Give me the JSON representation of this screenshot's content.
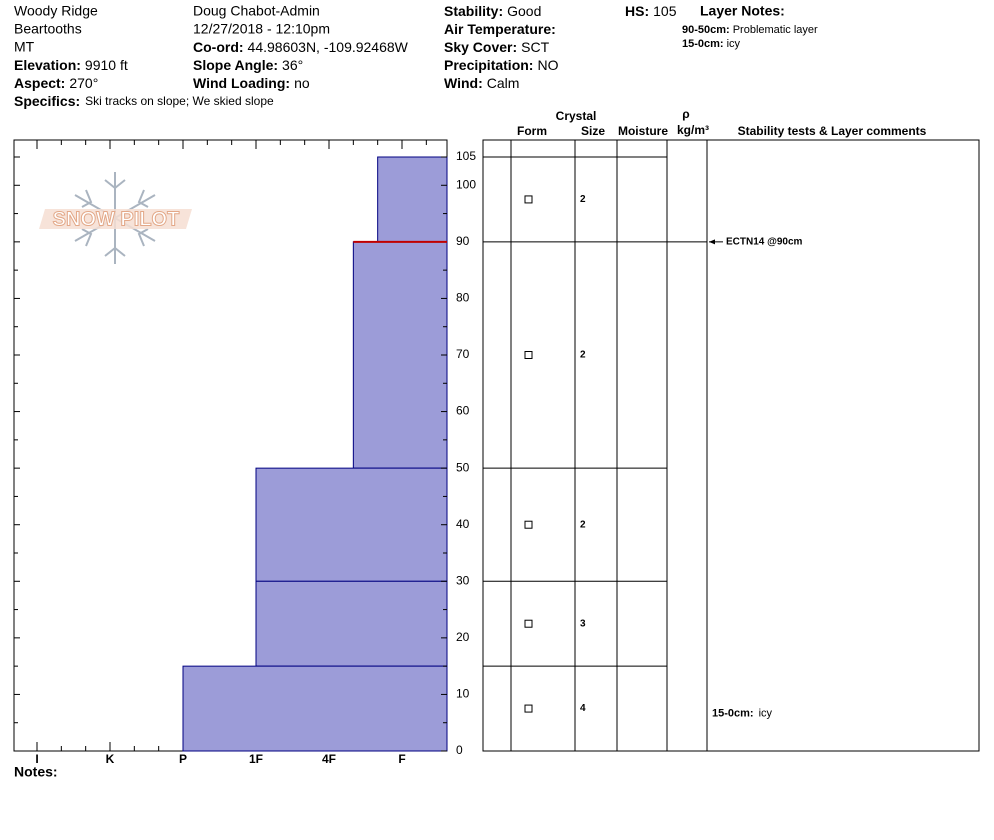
{
  "header": {
    "site": "Woody Ridge",
    "range": "Beartooths",
    "state": "MT",
    "observer": "Doug Chabot-Admin",
    "datetime": "12/27/2018 - 12:10pm",
    "fields": [
      {
        "label": "Elevation:",
        "value": "9910 ft"
      },
      {
        "label": "Aspect:",
        "value": "270°"
      },
      {
        "label": "Co-ord:",
        "value": "44.98603N, -109.92468W"
      },
      {
        "label": "Slope Angle:",
        "value": "36°"
      },
      {
        "label": "Wind Loading:",
        "value": "no"
      },
      {
        "label": "Stability:",
        "value": "Good"
      },
      {
        "label": "Air Temperature:"
      },
      {
        "label": "Sky Cover:",
        "value": "SCT"
      },
      {
        "label": "Precipitation:",
        "value": "NO"
      },
      {
        "label": "Wind:",
        "value": "Calm"
      },
      {
        "label": "HS:",
        "value": 105
      }
    ],
    "specifics": {
      "label": "Specifics:",
      "value": "Ski tracks on slope; We skied slope"
    },
    "layer_notes": {
      "title": "Layer Notes:",
      "items": [
        {
          "range": "90-50cm:",
          "text": "Problematic layer"
        },
        {
          "range": "15-0cm:",
          "text": "icy"
        }
      ]
    }
  },
  "chart_data": {
    "type": "snow-profile",
    "logo": "SNOW PILOT",
    "hardness_ticks": [
      "I",
      "K",
      "P",
      "1F",
      "4F",
      "F"
    ],
    "ylim": [
      0,
      105
    ],
    "yticks": [
      0,
      10,
      20,
      30,
      40,
      50,
      60,
      70,
      80,
      90,
      100,
      105
    ],
    "color": "#9c9cd8",
    "columns": {
      "crystal": "Crystal",
      "form": "Form",
      "size": "Size",
      "moisture": "Moisture",
      "density": "ρ",
      "density_unit": "kg/m³",
      "comments": "Stability tests & Layer comments"
    },
    "layers": [
      {
        "top": 105,
        "bottom": 90,
        "hardness": "F-",
        "size": 2
      },
      {
        "top": 90,
        "bottom": 50,
        "hardness": "4F+",
        "size": 2
      },
      {
        "top": 50,
        "bottom": 30,
        "hardness": "1F",
        "size": 2
      },
      {
        "top": 30,
        "bottom": 15,
        "hardness": "1F",
        "size": 3
      },
      {
        "top": 15,
        "bottom": 0,
        "hardness": "P",
        "size": 4
      }
    ],
    "tests": [
      {
        "depth": 90,
        "label": "ECTN14 @90cm"
      }
    ],
    "comments": [
      {
        "range": "15-0cm:",
        "text": "icy",
        "top": 15,
        "bottom": 0
      }
    ],
    "notes_label": "Notes:"
  }
}
